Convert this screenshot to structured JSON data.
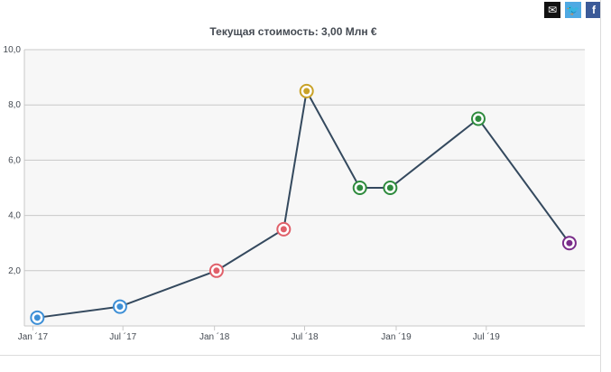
{
  "share": {
    "email_glyph": "✉",
    "twitter_glyph": "🐦",
    "facebook_glyph": "f"
  },
  "chart_data": {
    "type": "line",
    "title": "Текущая стоимость: 3,00 Млн €",
    "xlabel": "",
    "ylabel": "",
    "ylim": [
      0,
      10
    ],
    "y_ticks": [
      {
        "value": 2,
        "label": "2,0"
      },
      {
        "value": 4,
        "label": "4,0"
      },
      {
        "value": 6,
        "label": "6,0"
      },
      {
        "value": 8,
        "label": "8,0"
      },
      {
        "value": 10,
        "label": "10,0"
      }
    ],
    "x_ticks": [
      {
        "date": "2017-01-01",
        "label": "Jan ´17"
      },
      {
        "date": "2017-07-01",
        "label": "Jul ´17"
      },
      {
        "date": "2018-01-01",
        "label": "Jan ´18"
      },
      {
        "date": "2018-07-01",
        "label": "Jul ´18"
      },
      {
        "date": "2019-01-01",
        "label": "Jan ´19"
      },
      {
        "date": "2019-07-01",
        "label": "Jul ´19"
      }
    ],
    "xlim": [
      "2016-12-15",
      "2020-01-15"
    ],
    "grid": true,
    "series": [
      {
        "color": "#34495e",
        "points": [
          {
            "date": "2017-01-10",
            "value": 0.3,
            "club_icon": "club-crest-dnipro-icon",
            "icon_color": "#3d8fd6"
          },
          {
            "date": "2017-06-25",
            "value": 0.7,
            "club_icon": "club-crest-dnipro-icon",
            "icon_color": "#3d8fd6"
          },
          {
            "date": "2018-01-05",
            "value": 2.0,
            "club_icon": "club-crest-zorya-icon",
            "icon_color": "#e0606a"
          },
          {
            "date": "2018-05-20",
            "value": 3.5,
            "club_icon": "club-crest-zorya-icon",
            "icon_color": "#e0606a"
          },
          {
            "date": "2018-07-05",
            "value": 8.5,
            "club_icon": "club-crest-real-madrid-icon",
            "icon_color": "#c9a227"
          },
          {
            "date": "2018-10-20",
            "value": 5.0,
            "club_icon": "club-crest-leganes-icon",
            "icon_color": "#2e8b3d"
          },
          {
            "date": "2018-12-20",
            "value": 5.0,
            "club_icon": "club-crest-leganes-icon",
            "icon_color": "#2e8b3d"
          },
          {
            "date": "2019-06-15",
            "value": 7.5,
            "club_icon": "club-crest-leganes-icon",
            "icon_color": "#2e8b3d"
          },
          {
            "date": "2019-12-15",
            "value": 3.0,
            "club_icon": "club-crest-valladolid-icon",
            "icon_color": "#7a2d8a"
          }
        ]
      }
    ]
  }
}
